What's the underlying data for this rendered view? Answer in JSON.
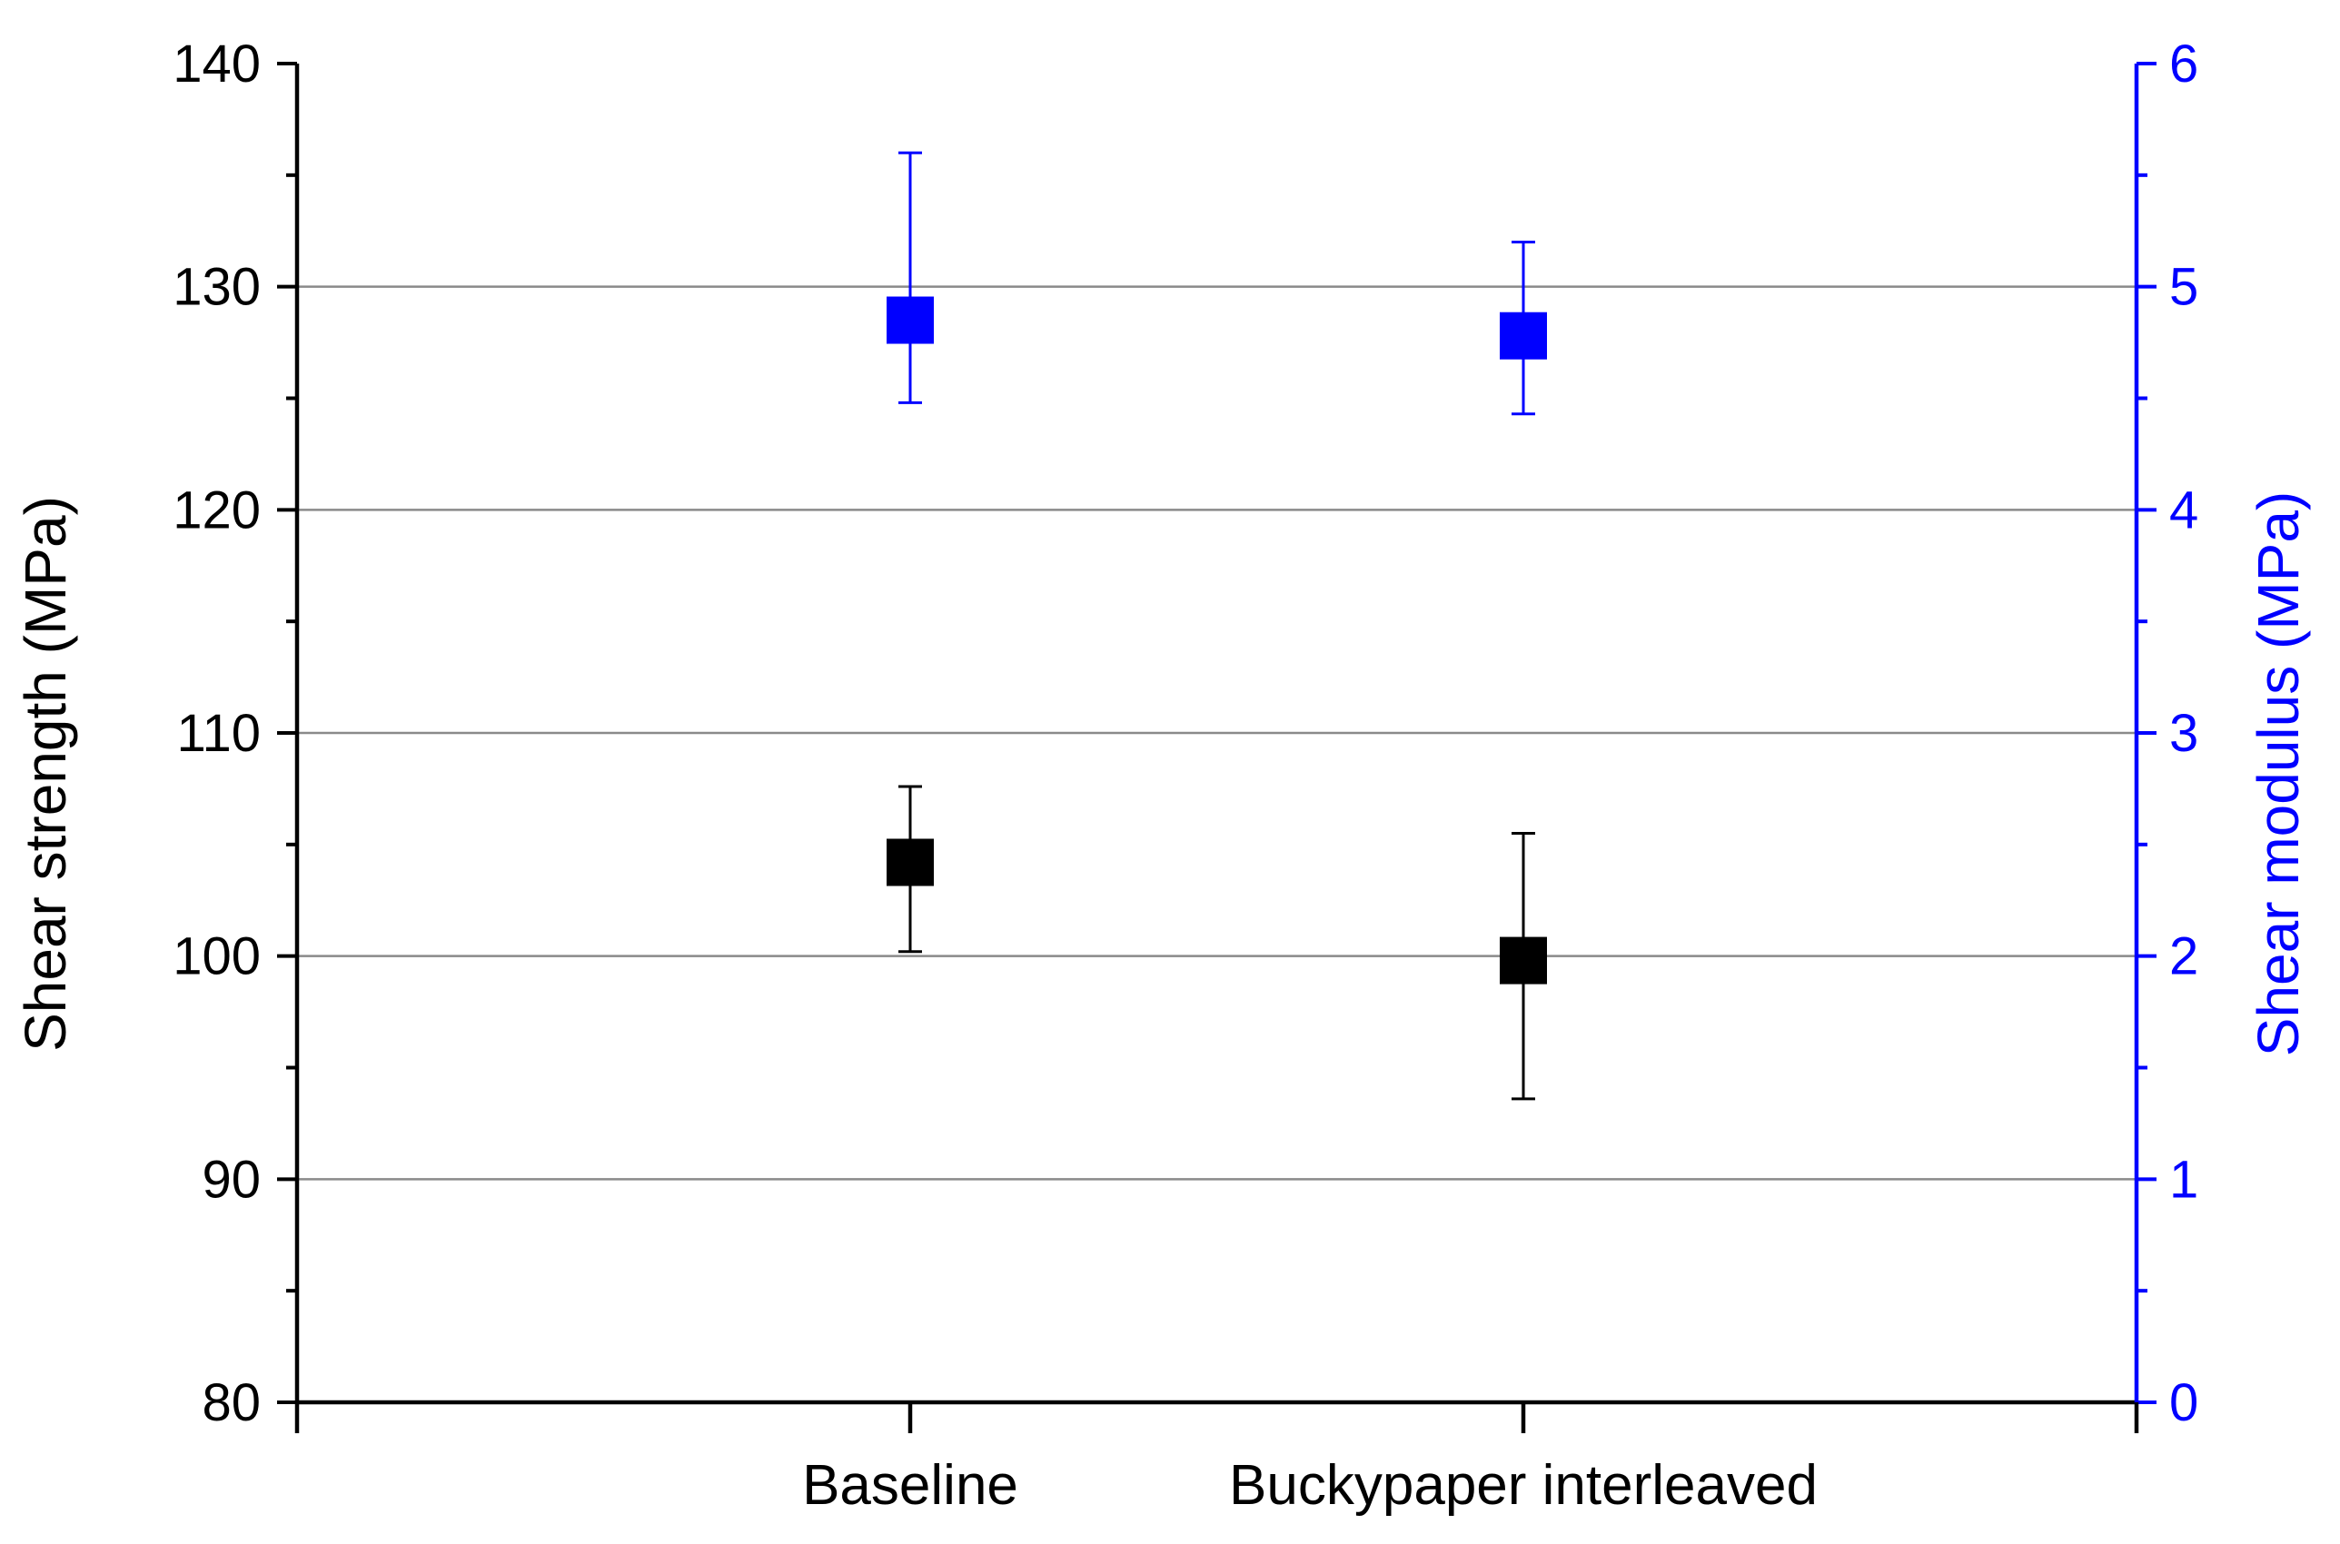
{
  "chart_data": {
    "type": "scatter",
    "categories": [
      "Baseline",
      "Buckypaper interleaved"
    ],
    "xlim": [
      0,
      3
    ],
    "grid": true,
    "left_axis": {
      "label": "Shear strength (MPa)",
      "ylim": [
        80,
        140
      ],
      "ticks": [
        80,
        90,
        100,
        110,
        120,
        130,
        140
      ],
      "color": "#000000"
    },
    "right_axis": {
      "label": "Shear modulus (MPa)",
      "ylim": [
        0,
        6
      ],
      "ticks": [
        0,
        1,
        2,
        3,
        4,
        5,
        6
      ],
      "color": "#0000ff"
    },
    "series": [
      {
        "axis": "left",
        "color": "#000000",
        "marker": "square",
        "values": [
          104.2,
          99.8
        ],
        "err_low": [
          100.2,
          93.6
        ],
        "err_high": [
          107.6,
          105.5
        ]
      },
      {
        "axis": "right",
        "color": "#0000ff",
        "marker": "square",
        "values": [
          4.85,
          4.78
        ],
        "err_low": [
          4.48,
          4.43
        ],
        "err_high": [
          5.6,
          5.2
        ]
      }
    ]
  }
}
